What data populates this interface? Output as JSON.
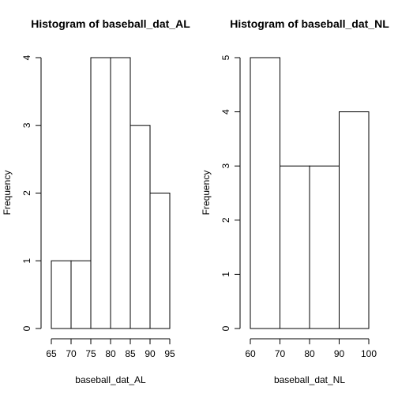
{
  "chart_data": [
    {
      "type": "bar",
      "title": "Histogram of baseball_dat_AL",
      "xlabel": "baseball_dat_AL",
      "ylabel": "Frequency",
      "bins": [
        [
          65,
          70
        ],
        [
          70,
          75
        ],
        [
          75,
          80
        ],
        [
          80,
          85
        ],
        [
          85,
          90
        ],
        [
          90,
          95
        ]
      ],
      "values": [
        1,
        1,
        4,
        4,
        3,
        2
      ],
      "xlim": [
        65,
        95
      ],
      "ylim": [
        0,
        4
      ],
      "xticks": [
        65,
        70,
        75,
        80,
        85,
        90,
        95
      ],
      "yticks": [
        0,
        1,
        2,
        3,
        4
      ],
      "grid": false,
      "colors": {
        "fill": "#ffffff",
        "stroke": "#000000"
      }
    },
    {
      "type": "bar",
      "title": "Histogram of baseball_dat_NL",
      "xlabel": "baseball_dat_NL",
      "ylabel": "Frequency",
      "bins": [
        [
          60,
          70
        ],
        [
          70,
          80
        ],
        [
          80,
          90
        ],
        [
          90,
          100
        ]
      ],
      "values": [
        5,
        3,
        3,
        4
      ],
      "xlim": [
        60,
        100
      ],
      "ylim": [
        0,
        5
      ],
      "xticks": [
        60,
        70,
        80,
        90,
        100
      ],
      "yticks": [
        0,
        1,
        2,
        3,
        4,
        5
      ],
      "grid": false,
      "colors": {
        "fill": "#ffffff",
        "stroke": "#000000"
      }
    }
  ]
}
